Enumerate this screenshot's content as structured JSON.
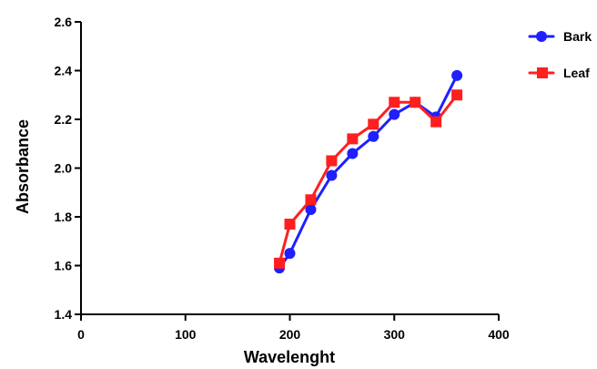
{
  "chart_data": {
    "type": "line",
    "title": "",
    "xlabel": "Wavelenght",
    "ylabel": "Absorbance",
    "xlim": [
      0,
      400
    ],
    "ylim": [
      1.4,
      2.6
    ],
    "x_ticks": [
      "0",
      "100",
      "200",
      "300",
      "400"
    ],
    "y_ticks": [
      "1.4",
      "1.6",
      "1.8",
      "2.0",
      "2.2",
      "2.4",
      "2.6"
    ],
    "grid": false,
    "legend_position": "right",
    "series": [
      {
        "name": "Bark",
        "color": "#1f1fff",
        "marker": "circle",
        "points": [
          {
            "x": 190,
            "y": 1.59
          },
          {
            "x": 200,
            "y": 1.65
          },
          {
            "x": 220,
            "y": 1.83
          },
          {
            "x": 240,
            "y": 1.97
          },
          {
            "x": 260,
            "y": 2.06
          },
          {
            "x": 280,
            "y": 2.13
          },
          {
            "x": 300,
            "y": 2.22
          },
          {
            "x": 320,
            "y": 2.27
          },
          {
            "x": 340,
            "y": 2.21
          },
          {
            "x": 360,
            "y": 2.38
          }
        ]
      },
      {
        "name": "Leaf",
        "color": "#ff1f1f",
        "marker": "square",
        "points": [
          {
            "x": 190,
            "y": 1.61
          },
          {
            "x": 200,
            "y": 1.77
          },
          {
            "x": 220,
            "y": 1.87
          },
          {
            "x": 240,
            "y": 2.03
          },
          {
            "x": 260,
            "y": 2.12
          },
          {
            "x": 280,
            "y": 2.18
          },
          {
            "x": 300,
            "y": 2.27
          },
          {
            "x": 320,
            "y": 2.27
          },
          {
            "x": 340,
            "y": 2.19
          },
          {
            "x": 360,
            "y": 2.3
          }
        ]
      }
    ]
  }
}
